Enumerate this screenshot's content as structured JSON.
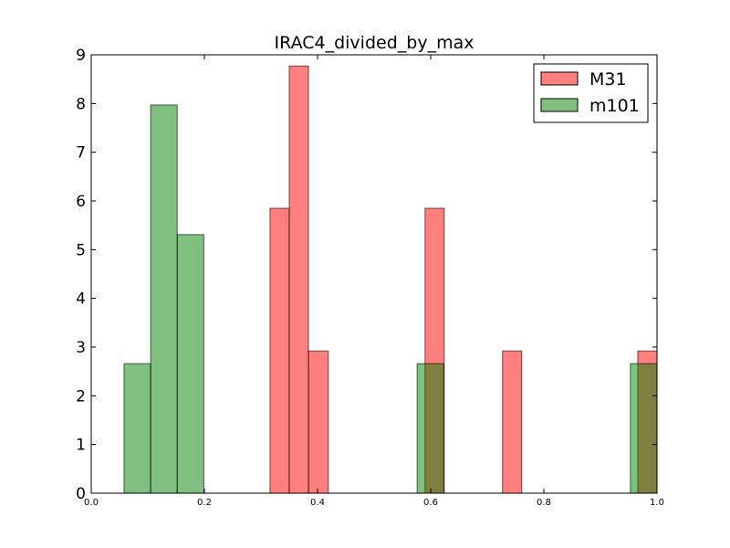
{
  "chart_data": {
    "type": "bar",
    "title": "IRAC4_divided_by_max",
    "xlabel": "",
    "ylabel": "",
    "xlim": [
      0.0,
      1.0
    ],
    "ylim": [
      0,
      9
    ],
    "xticks": [
      "0.0",
      "0.2",
      "0.4",
      "0.6",
      "0.8",
      "1.0"
    ],
    "yticks": [
      "0",
      "1",
      "2",
      "3",
      "4",
      "5",
      "6",
      "7",
      "8",
      "9"
    ],
    "grid": false,
    "legend_position": "top-right",
    "series": [
      {
        "name": "M31",
        "color": "#ff0000",
        "bins": [
          {
            "x0": 0.316,
            "x1": 0.35,
            "value": 5.85
          },
          {
            "x0": 0.35,
            "x1": 0.384,
            "value": 8.77
          },
          {
            "x0": 0.384,
            "x1": 0.419,
            "value": 2.92
          },
          {
            "x0": 0.59,
            "x1": 0.624,
            "value": 5.85
          },
          {
            "x0": 0.727,
            "x1": 0.761,
            "value": 2.92
          },
          {
            "x0": 0.966,
            "x1": 1.0,
            "value": 2.92
          }
        ]
      },
      {
        "name": "m101",
        "color": "#008000",
        "bins": [
          {
            "x0": 0.058,
            "x1": 0.105,
            "value": 2.66
          },
          {
            "x0": 0.105,
            "x1": 0.152,
            "value": 7.97
          },
          {
            "x0": 0.152,
            "x1": 0.199,
            "value": 5.31
          },
          {
            "x0": 0.576,
            "x1": 0.623,
            "value": 2.66
          },
          {
            "x0": 0.953,
            "x1": 1.0,
            "value": 2.66
          }
        ]
      }
    ]
  }
}
